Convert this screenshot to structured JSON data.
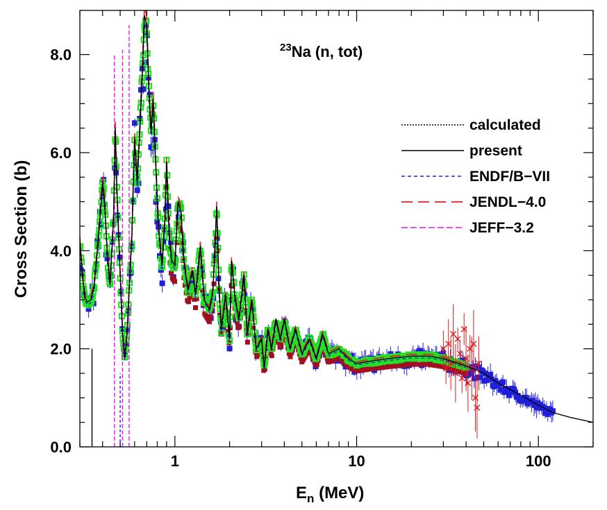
{
  "chart_data": {
    "type": "scatter",
    "title_prefix": "23",
    "title_main": "Na (n, tot)",
    "xlabel_main": "E",
    "xlabel_sub": "n",
    "xlabel_unit": " (MeV)",
    "ylabel": "Cross Section (b)",
    "x_scale": "log",
    "xlim": [
      0.3,
      200
    ],
    "ylim": [
      0,
      8.9
    ],
    "x_ticks": [
      1,
      10,
      100
    ],
    "x_tick_labels": [
      "1",
      "10",
      "100"
    ],
    "y_ticks": [
      0,
      2,
      4,
      6,
      8
    ],
    "y_tick_labels": [
      "0.0",
      "2.0",
      "4.0",
      "6.0",
      "8.0"
    ],
    "grid": false,
    "legend_position": "right",
    "legend": [
      {
        "label": "calculated",
        "color": "#000000",
        "dash": "2,2",
        "width": 1.5
      },
      {
        "label": "present",
        "color": "#000000",
        "dash": "",
        "width": 1.5
      },
      {
        "label": "ENDF/B−VII",
        "color": "#1f1fe6",
        "dash": "5,4",
        "width": 1.5
      },
      {
        "label": "JENDL−4.0",
        "color": "#e02020",
        "dash": "16,8",
        "width": 1.8
      },
      {
        "label": "JEFF−3.2",
        "color": "#e619e6",
        "dash": "9,4",
        "width": 1.5
      }
    ],
    "colors": {
      "blue_exp": "#2020d8",
      "red_exp": "#e01818",
      "darkred_exp": "#a01020",
      "green_exp": "#22e022",
      "curve": "#000000"
    },
    "present_curve": [
      [
        0.3,
        4.2
      ],
      [
        0.31,
        3.5
      ],
      [
        0.32,
        3.05
      ],
      [
        0.33,
        2.95
      ],
      [
        0.345,
        3.0
      ],
      [
        0.36,
        3.3
      ],
      [
        0.38,
        4.3
      ],
      [
        0.4,
        5.4
      ],
      [
        0.41,
        5.0
      ],
      [
        0.425,
        3.9
      ],
      [
        0.44,
        3.3
      ],
      [
        0.46,
        4.7
      ],
      [
        0.47,
        6.5
      ],
      [
        0.48,
        5.2
      ],
      [
        0.5,
        3.5
      ],
      [
        0.515,
        2.3
      ],
      [
        0.53,
        1.8
      ],
      [
        0.545,
        2.3
      ],
      [
        0.56,
        3.2
      ],
      [
        0.58,
        4.3
      ],
      [
        0.6,
        6.3
      ],
      [
        0.62,
        5.4
      ],
      [
        0.64,
        6.4
      ],
      [
        0.66,
        7.5
      ],
      [
        0.68,
        8.8
      ],
      [
        0.7,
        8.6
      ],
      [
        0.72,
        7.2
      ],
      [
        0.74,
        6.4
      ],
      [
        0.76,
        7.1
      ],
      [
        0.78,
        6.0
      ],
      [
        0.8,
        5.0
      ],
      [
        0.82,
        4.3
      ],
      [
        0.85,
        3.7
      ],
      [
        0.88,
        4.6
      ],
      [
        0.9,
        5.8
      ],
      [
        0.93,
        4.3
      ],
      [
        0.96,
        3.8
      ],
      [
        1.0,
        3.7
      ],
      [
        1.04,
        5.0
      ],
      [
        1.08,
        4.8
      ],
      [
        1.12,
        3.8
      ],
      [
        1.18,
        3.2
      ],
      [
        1.25,
        3.6
      ],
      [
        1.3,
        3.1
      ],
      [
        1.38,
        4.1
      ],
      [
        1.45,
        3.0
      ],
      [
        1.55,
        2.8
      ],
      [
        1.62,
        3.2
      ],
      [
        1.7,
        4.9
      ],
      [
        1.75,
        3.2
      ],
      [
        1.8,
        2.4
      ],
      [
        1.9,
        3.1
      ],
      [
        2.0,
        2.2
      ],
      [
        2.05,
        3.8
      ],
      [
        2.15,
        3.0
      ],
      [
        2.25,
        2.6
      ],
      [
        2.4,
        3.5
      ],
      [
        2.5,
        2.3
      ],
      [
        2.65,
        3.0
      ],
      [
        2.8,
        2.0
      ],
      [
        3.0,
        2.2
      ],
      [
        3.1,
        1.6
      ],
      [
        3.25,
        2.4
      ],
      [
        3.4,
        2.0
      ],
      [
        3.6,
        2.6
      ],
      [
        3.8,
        2.2
      ],
      [
        4.0,
        2.6
      ],
      [
        4.3,
        2.0
      ],
      [
        4.6,
        2.4
      ],
      [
        5.0,
        1.9
      ],
      [
        5.5,
        2.2
      ],
      [
        6.0,
        1.8
      ],
      [
        6.5,
        2.3
      ],
      [
        7.0,
        1.9
      ],
      [
        8.0,
        2.0
      ],
      [
        9.0,
        1.8
      ],
      [
        10.0,
        1.7
      ],
      [
        12.0,
        1.75
      ],
      [
        15.0,
        1.8
      ],
      [
        20.0,
        1.85
      ],
      [
        25.0,
        1.85
      ],
      [
        30.0,
        1.8
      ],
      [
        40.0,
        1.65
      ],
      [
        50.0,
        1.5
      ],
      [
        60.0,
        1.3
      ],
      [
        80.0,
        1.05
      ],
      [
        100.0,
        0.85
      ],
      [
        120.0,
        0.7
      ],
      [
        150.0,
        0.6
      ],
      [
        200.0,
        0.5
      ]
    ],
    "low_energy_drops": [
      {
        "x": 0.35,
        "color": "#000000",
        "dash": "",
        "top": 2.0
      },
      {
        "x": 0.465,
        "color": "#e619e6",
        "dash": "6,3",
        "top": 8.0
      },
      {
        "x": 0.5,
        "color": "#1f1fe6",
        "dash": "4,3",
        "top": 1.5
      },
      {
        "x": 0.515,
        "color": "#e619e6",
        "dash": "6,3",
        "top": 8.1
      },
      {
        "x": 0.56,
        "color": "#e619e6",
        "dash": "6,3",
        "top": 8.6
      }
    ],
    "red_scatter": [
      [
        30,
        2.0
      ],
      [
        31,
        1.6
      ],
      [
        32,
        2.1
      ],
      [
        33,
        1.7
      ],
      [
        34,
        2.3
      ],
      [
        35,
        1.5
      ],
      [
        36,
        2.2
      ],
      [
        37,
        1.9
      ],
      [
        38,
        1.4
      ],
      [
        39,
        2.4
      ],
      [
        40,
        1.8
      ],
      [
        41,
        1.3
      ],
      [
        42,
        2.0
      ],
      [
        43,
        1.6
      ],
      [
        44,
        2.1
      ],
      [
        45,
        1.0
      ],
      [
        46,
        0.8
      ],
      [
        47,
        1.7
      ]
    ]
  }
}
